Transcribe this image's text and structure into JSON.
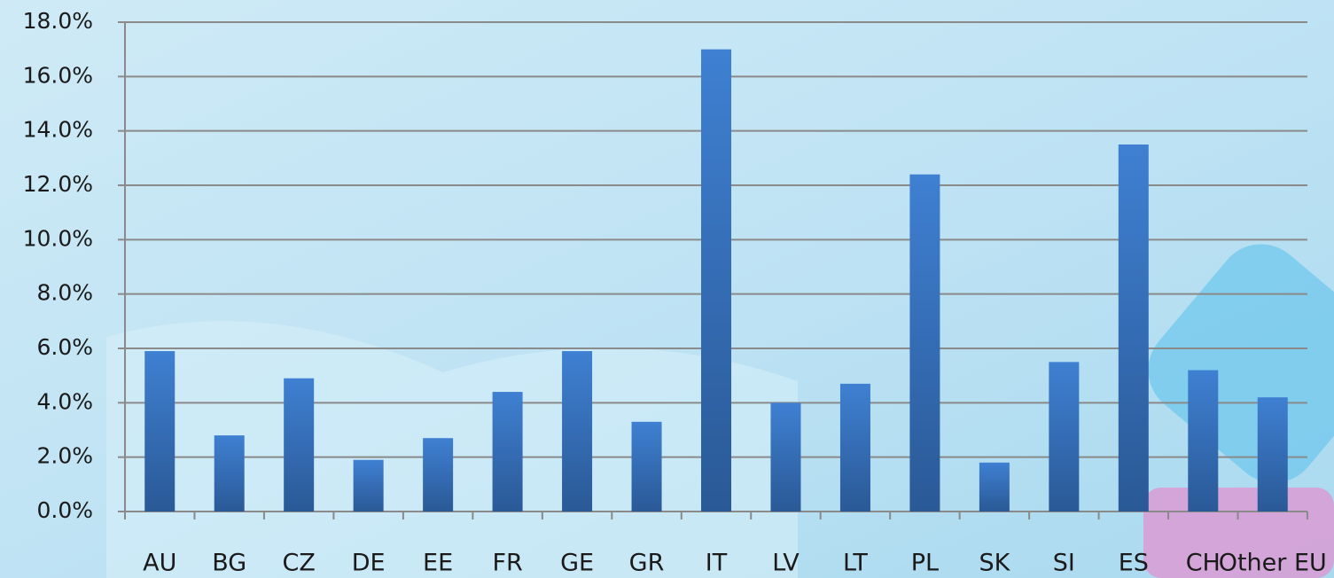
{
  "chart_data": {
    "type": "bar",
    "categories": [
      "AU",
      "BG",
      "CZ",
      "DE",
      "EE",
      "FR",
      "GE",
      "GR",
      "IT",
      "LV",
      "LT",
      "PL",
      "SK",
      "SI",
      "ES",
      "CH",
      "Other EU"
    ],
    "values": [
      5.9,
      2.8,
      4.9,
      1.9,
      2.7,
      4.4,
      5.9,
      3.3,
      17.0,
      4.0,
      4.7,
      12.4,
      1.8,
      5.5,
      13.5,
      5.2,
      4.2
    ],
    "color": "#3a78c8",
    "ylim": [
      0,
      18
    ],
    "yticks": [
      {
        "value": 0,
        "label": "0.0%"
      },
      {
        "value": 2,
        "label": "2.0%"
      },
      {
        "value": 4,
        "label": "4.0%"
      },
      {
        "value": 6,
        "label": "6.0%"
      },
      {
        "value": 8,
        "label": "8.0%"
      },
      {
        "value": 10,
        "label": "10.0%"
      },
      {
        "value": 12,
        "label": "12.0%"
      },
      {
        "value": 14,
        "label": "14.0%"
      },
      {
        "value": 16,
        "label": "16.0%"
      },
      {
        "value": 18,
        "label": "18.0%"
      }
    ],
    "grid": true
  }
}
